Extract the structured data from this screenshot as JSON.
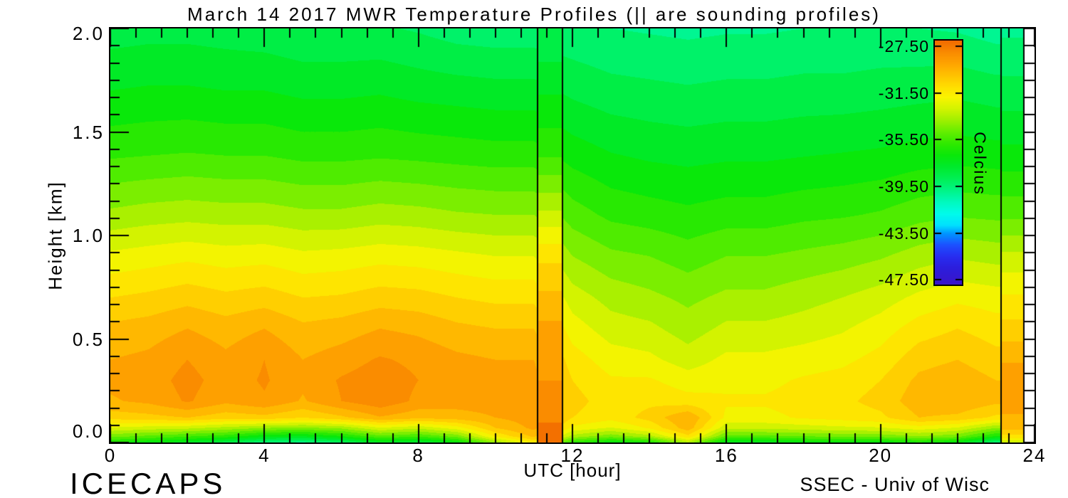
{
  "chart_data": {
    "type": "heatmap",
    "title": "March 14 2017 MWR Temperature Profiles (|| are sounding profiles)",
    "xlabel": "UTC [hour]",
    "ylabel": "Height [km]",
    "xlim": [
      0,
      24
    ],
    "ylim": [
      0.0,
      2.0
    ],
    "x_tick_values": [
      0,
      4,
      8,
      12,
      16,
      20,
      24
    ],
    "x_tick_labels": [
      "0",
      "4",
      "8",
      "12",
      "16",
      "20",
      "24"
    ],
    "x_minor_interval_hours": 0.6667,
    "y_tick_values": [
      0.0,
      0.5,
      1.0,
      1.5,
      2.0
    ],
    "y_tick_labels": [
      "0.0",
      "0.5",
      "1.0",
      "1.5",
      "2.0"
    ],
    "y_minor_interval_km": 0.0833,
    "grid": false,
    "data_end_hour": 23.72,
    "hours": [
      0,
      1,
      2,
      3,
      4,
      5,
      6,
      7,
      8,
      9,
      10,
      11,
      12,
      13,
      14,
      15,
      16,
      17,
      18,
      19,
      20,
      21,
      22,
      23,
      24
    ],
    "heights_km": [
      0.0,
      0.03,
      0.07,
      0.12,
      0.2,
      0.3,
      0.4,
      0.55,
      0.7,
      0.9,
      1.1,
      1.4,
      1.7,
      2.0
    ],
    "temperature_c": [
      [
        -36.5,
        -37.0,
        -37.5,
        -38.5,
        -39.5,
        -39.8,
        -39.0,
        -37.5,
        -38.0,
        -37.0,
        -34.0,
        -31.5,
        -36.0,
        -37.0,
        -36.5,
        -33.5,
        -37.5,
        -37.5,
        -37.0,
        -37.0,
        -37.0,
        -36.5,
        -37.0,
        -39.5,
        -39.5
      ],
      [
        -34.5,
        -35.0,
        -35.5,
        -36.0,
        -37.0,
        -37.2,
        -36.5,
        -35.0,
        -35.5,
        -34.5,
        -31.5,
        -29.8,
        -33.5,
        -34.5,
        -33.5,
        -31.0,
        -35.0,
        -35.0,
        -34.8,
        -34.6,
        -34.5,
        -34.0,
        -34.5,
        -36.5,
        -36.5
      ],
      [
        -32.5,
        -32.8,
        -33.0,
        -33.5,
        -34.0,
        -34.2,
        -33.8,
        -32.5,
        -33.0,
        -32.0,
        -30.0,
        -29.0,
        -31.8,
        -32.5,
        -31.5,
        -29.5,
        -33.0,
        -33.0,
        -32.8,
        -32.6,
        -32.5,
        -32.0,
        -32.5,
        -34.0,
        -34.0
      ],
      [
        -30.5,
        -30.3,
        -30.0,
        -30.5,
        -30.3,
        -30.8,
        -30.2,
        -29.3,
        -29.8,
        -29.6,
        -29.2,
        -28.8,
        -30.8,
        -31.3,
        -30.5,
        -29.2,
        -31.8,
        -31.8,
        -31.5,
        -31.3,
        -31.0,
        -30.0,
        -30.2,
        -31.0,
        -31.0
      ],
      [
        -29.3,
        -29.0,
        -28.3,
        -29.0,
        -28.5,
        -29.3,
        -28.4,
        -27.8,
        -28.6,
        -28.8,
        -28.8,
        -28.7,
        -30.5,
        -31.2,
        -31.0,
        -31.3,
        -31.5,
        -31.5,
        -31.3,
        -31.0,
        -30.5,
        -29.5,
        -29.3,
        -29.8,
        -29.8
      ],
      [
        -29.0,
        -28.8,
        -28.1,
        -28.8,
        -28.3,
        -29.0,
        -28.3,
        -27.9,
        -28.4,
        -28.7,
        -28.9,
        -28.9,
        -30.8,
        -31.5,
        -31.5,
        -32.0,
        -31.8,
        -31.8,
        -31.5,
        -31.3,
        -30.8,
        -29.8,
        -29.5,
        -30.0,
        -30.0
      ],
      [
        -29.2,
        -29.0,
        -28.4,
        -29.0,
        -28.4,
        -29.2,
        -28.8,
        -28.3,
        -28.6,
        -29.0,
        -29.2,
        -29.2,
        -31.2,
        -32.0,
        -32.2,
        -32.8,
        -32.2,
        -32.2,
        -32.0,
        -31.8,
        -31.3,
        -30.3,
        -30.0,
        -30.5,
        -30.5
      ],
      [
        -29.8,
        -29.6,
        -29.2,
        -29.6,
        -29.2,
        -29.8,
        -29.6,
        -29.2,
        -29.4,
        -29.8,
        -30.0,
        -30.0,
        -32.0,
        -32.8,
        -33.0,
        -33.6,
        -33.0,
        -33.0,
        -32.8,
        -32.5,
        -32.0,
        -31.2,
        -30.8,
        -31.2,
        -31.2
      ],
      [
        -30.8,
        -30.6,
        -30.3,
        -30.6,
        -30.4,
        -30.8,
        -30.7,
        -30.4,
        -30.5,
        -30.8,
        -31.0,
        -31.0,
        -32.8,
        -33.5,
        -33.8,
        -34.2,
        -33.8,
        -33.8,
        -33.5,
        -33.2,
        -32.8,
        -32.2,
        -31.8,
        -32.0,
        -32.0
      ],
      [
        -32.2,
        -32.0,
        -31.8,
        -32.0,
        -31.9,
        -32.2,
        -32.1,
        -31.9,
        -32.0,
        -32.2,
        -32.4,
        -32.4,
        -34.0,
        -34.6,
        -34.8,
        -35.2,
        -34.8,
        -34.8,
        -34.6,
        -34.4,
        -34.1,
        -33.6,
        -33.3,
        -33.5,
        -33.5
      ],
      [
        -33.8,
        -33.6,
        -33.5,
        -33.6,
        -33.6,
        -33.8,
        -33.8,
        -33.6,
        -33.7,
        -33.9,
        -34.0,
        -34.0,
        -35.2,
        -35.8,
        -36.0,
        -36.2,
        -36.0,
        -36.0,
        -35.8,
        -35.7,
        -35.5,
        -35.1,
        -34.9,
        -35.0,
        -35.0
      ],
      [
        -35.8,
        -35.7,
        -35.6,
        -35.7,
        -35.7,
        -35.9,
        -35.9,
        -35.8,
        -35.9,
        -36.0,
        -36.1,
        -36.1,
        -36.8,
        -37.2,
        -37.4,
        -37.5,
        -37.4,
        -37.4,
        -37.3,
        -37.2,
        -37.1,
        -36.9,
        -36.8,
        -36.9,
        -36.9
      ],
      [
        -37.2,
        -37.1,
        -37.1,
        -37.2,
        -37.2,
        -37.4,
        -37.4,
        -37.3,
        -37.5,
        -37.6,
        -37.7,
        -37.7,
        -38.2,
        -38.5,
        -38.6,
        -38.7,
        -38.6,
        -38.6,
        -38.5,
        -38.5,
        -38.4,
        -38.3,
        -38.2,
        -38.4,
        -38.4
      ],
      [
        -38.4,
        -38.3,
        -38.3,
        -38.4,
        -38.5,
        -38.7,
        -38.7,
        -38.7,
        -38.9,
        -39.2,
        -39.3,
        -39.3,
        -39.4,
        -39.6,
        -39.7,
        -39.8,
        -39.7,
        -39.7,
        -39.6,
        -39.6,
        -39.5,
        -39.6,
        -39.7,
        -40.0,
        -40.0
      ]
    ],
    "soundings": [
      {
        "start_hour": 11.1,
        "end_hour": 11.75,
        "profile_c": [
          -27.5,
          -27.3,
          -27.4,
          -27.8,
          -28.2,
          -28.4,
          -28.6,
          -29.0,
          -29.8,
          -31.0,
          -33.0,
          -35.8,
          -37.3,
          -38.8
        ]
      },
      {
        "start_hour": 23.13,
        "end_hour": 23.72,
        "profile_c": [
          -33.0,
          -31.0,
          -29.8,
          -29.3,
          -28.8,
          -28.6,
          -29.3,
          -30.5,
          -31.5,
          -33.0,
          -35.0,
          -37.0,
          -38.5,
          -39.8
        ]
      }
    ],
    "contour_step_c": 0.8,
    "colorbar": {
      "label": "Celcius",
      "top_value": -27.0,
      "bottom_value": -47.9,
      "tick_values": [
        -27.5,
        -31.5,
        -35.5,
        -39.5,
        -43.5,
        -47.5
      ],
      "tick_labels": [
        "-27.50",
        "-31.50",
        "-35.50",
        "-39.50",
        "-43.50",
        "-47.50"
      ]
    },
    "colormap": [
      [
        -27.0,
        "#F26A00"
      ],
      [
        -28.0,
        "#FA8C00"
      ],
      [
        -29.0,
        "#FFA600"
      ],
      [
        -30.0,
        "#FFC400"
      ],
      [
        -31.0,
        "#FFE000"
      ],
      [
        -31.8,
        "#FBF400"
      ],
      [
        -32.8,
        "#D4F400"
      ],
      [
        -33.8,
        "#A0F000"
      ],
      [
        -34.8,
        "#64EE00"
      ],
      [
        -35.8,
        "#30EA00"
      ],
      [
        -36.8,
        "#0AE80A"
      ],
      [
        -37.8,
        "#00EB2D"
      ],
      [
        -38.8,
        "#00F055"
      ],
      [
        -39.8,
        "#00F587"
      ],
      [
        -40.8,
        "#00FABE"
      ],
      [
        -41.8,
        "#00FCEB"
      ],
      [
        -42.8,
        "#00E1FF"
      ],
      [
        -43.5,
        "#0096FF"
      ],
      [
        -44.5,
        "#1E50FF"
      ],
      [
        -45.5,
        "#282DF0"
      ],
      [
        -46.5,
        "#2D1EDC"
      ],
      [
        -48.0,
        "#3C14C8"
      ]
    ],
    "line_color": "#000000",
    "background": "#FFFFFF"
  },
  "footer": {
    "left": "ICECAPS",
    "right": "SSEC - Univ of Wisc"
  }
}
